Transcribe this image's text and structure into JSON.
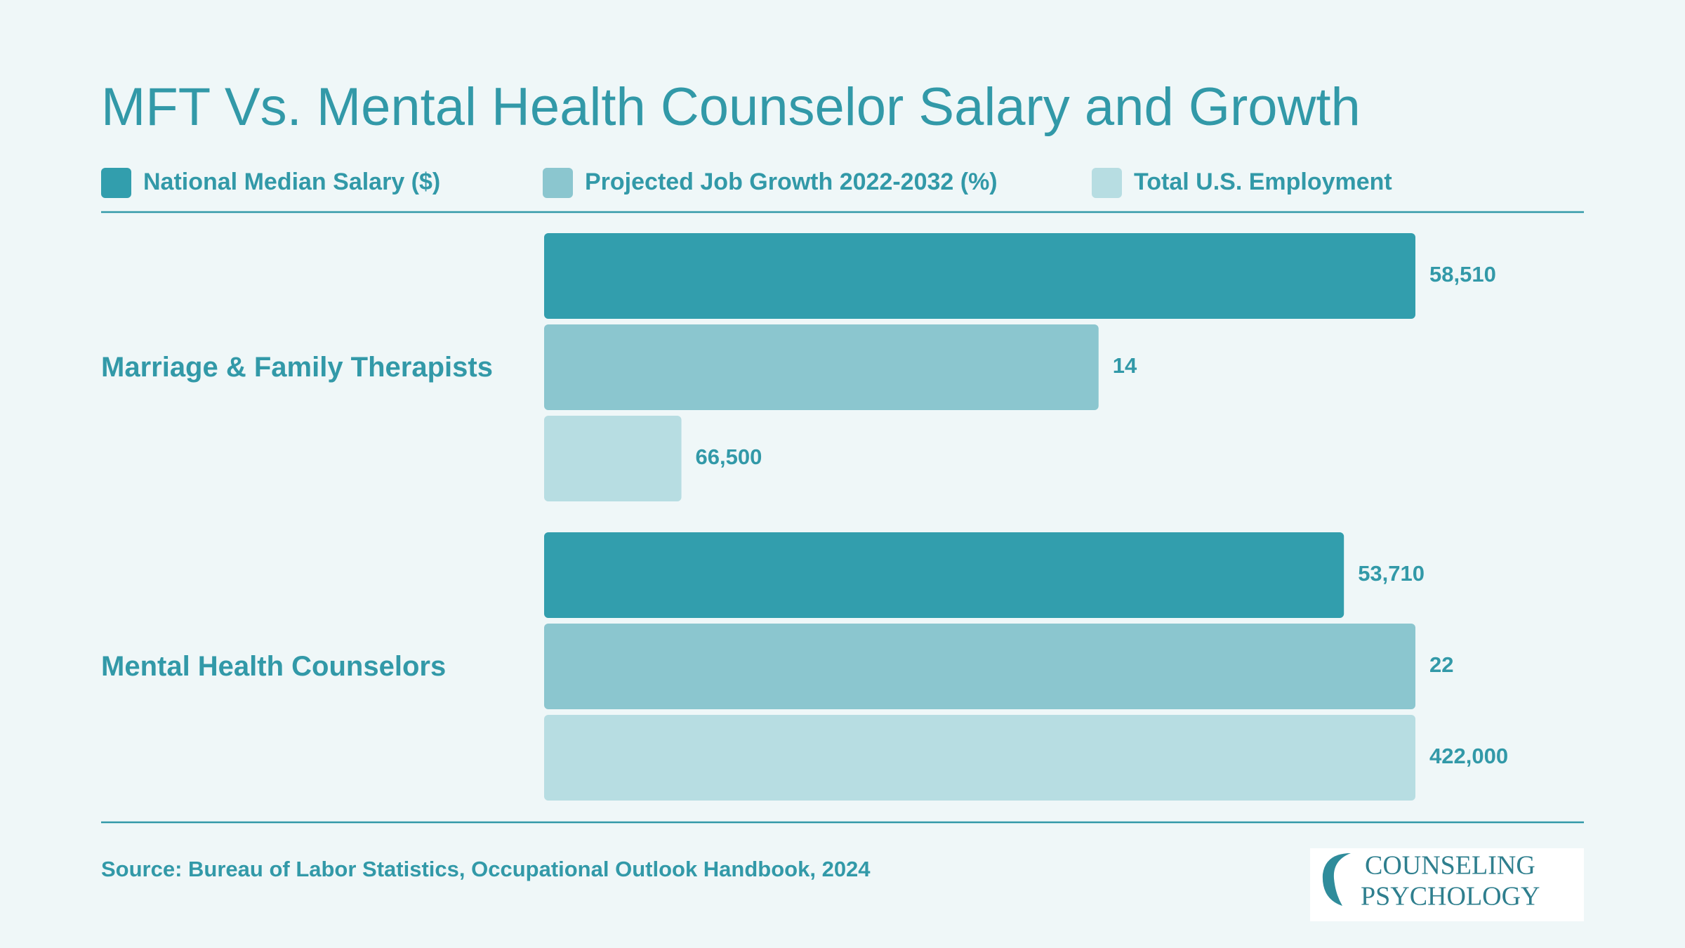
{
  "chart_data": {
    "type": "bar",
    "orientation": "horizontal",
    "title": "MFT Vs. Mental Health Counselor Salary and Growth",
    "categories": [
      "Marriage & Family Therapists",
      "Mental Health Counselors"
    ],
    "series": [
      {
        "name": "National Median Salary ($)",
        "color": "#329ead",
        "values": [
          58510,
          53710
        ],
        "value_labels": [
          "58,510",
          "53,710"
        ]
      },
      {
        "name": "Projected Job Growth 2022-2032 (%)",
        "color": "#8bc6cf",
        "values": [
          14,
          22
        ]
      },
      {
        "name": "Total U.S. Employment",
        "color": "#b7dde2",
        "values": [
          66500,
          422000
        ],
        "value_labels": [
          "66,500",
          "422,000"
        ]
      }
    ],
    "source": "Source: Bureau of Labor Statistics, Occupational Outlook Handbook, 2024",
    "logo": [
      "COUNSELING",
      "PSYCHOLOGY"
    ]
  }
}
